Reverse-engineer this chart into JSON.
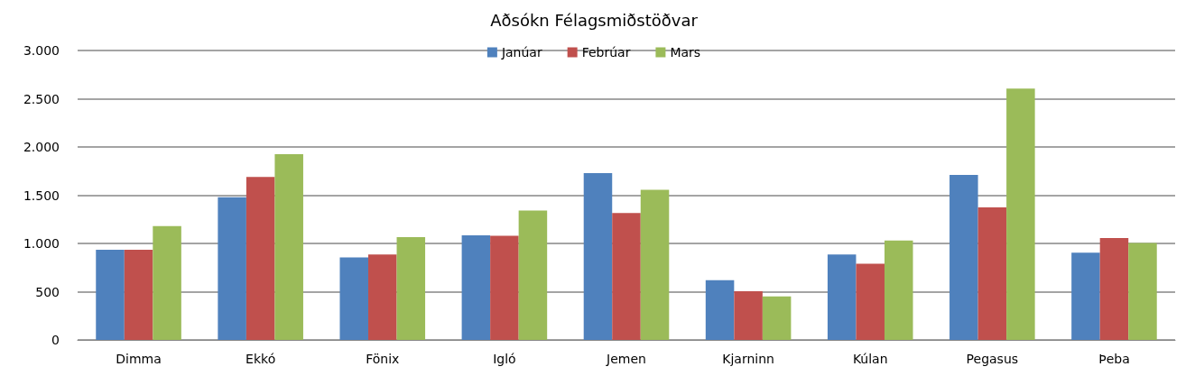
{
  "chart_data": {
    "type": "bar",
    "title": "Aðsókn Félagsmiðstöðvar",
    "categories": [
      "Dimma",
      "Ekkó",
      "Fönix",
      "Igló",
      "Jemen",
      "Kjarninn",
      "Kúlan",
      "Pegasus",
      "Þeba"
    ],
    "series": [
      {
        "name": "Janúar",
        "color": "#4f81bd",
        "values": [
          935,
          1480,
          855,
          1085,
          1730,
          620,
          885,
          1710,
          905
        ]
      },
      {
        "name": "Febrúar",
        "color": "#c0504d",
        "values": [
          935,
          1690,
          885,
          1080,
          1315,
          505,
          790,
          1375,
          1055
        ]
      },
      {
        "name": "Mars",
        "color": "#9bbb59",
        "values": [
          1180,
          1925,
          1065,
          1340,
          1555,
          450,
          1030,
          2605,
          1005
        ]
      }
    ],
    "ylim": [
      0,
      3000
    ],
    "yticks": [
      {
        "value": 0,
        "label": "0"
      },
      {
        "value": 500,
        "label": "500"
      },
      {
        "value": 1000,
        "label": "1.000"
      },
      {
        "value": 1500,
        "label": "1.500"
      },
      {
        "value": 2000,
        "label": "2.000"
      },
      {
        "value": 2500,
        "label": "2.500"
      },
      {
        "value": 3000,
        "label": "3.000"
      }
    ],
    "grid": "y",
    "legend": "top"
  }
}
